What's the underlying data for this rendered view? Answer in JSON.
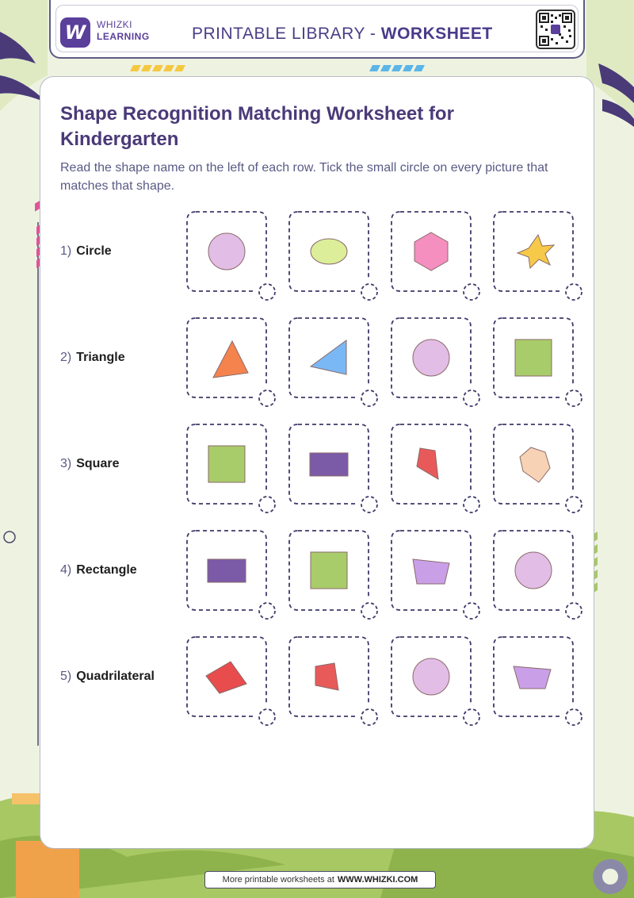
{
  "brand": {
    "logo_letter": "W",
    "line1": "WHIZKI",
    "line2": "LEARNING"
  },
  "header": {
    "title_prefix": "PRINTABLE LIBRARY - ",
    "title_bold": "WORKSHEET"
  },
  "worksheet": {
    "title": "Shape Recognition Matching Worksheet for Kindergarten",
    "instructions": "Read the shape name on the left of each row. Tick the small circle on every picture that matches that shape."
  },
  "rows": [
    {
      "number": "1)",
      "name": "Circle",
      "shapes": [
        {
          "kind": "circle",
          "color": "#e2bde6"
        },
        {
          "kind": "ellipse",
          "color": "#dcee9a"
        },
        {
          "kind": "hexagon",
          "color": "#f48fbf"
        },
        {
          "kind": "star",
          "color": "#f7c948"
        }
      ]
    },
    {
      "number": "2)",
      "name": "Triangle",
      "shapes": [
        {
          "kind": "triangle",
          "color": "#f5834e"
        },
        {
          "kind": "triangle2",
          "color": "#7ab8f5"
        },
        {
          "kind": "circle",
          "color": "#e2bde6"
        },
        {
          "kind": "square",
          "color": "#a9cc6a"
        }
      ]
    },
    {
      "number": "3)",
      "name": "Square",
      "shapes": [
        {
          "kind": "square",
          "color": "#a9cc6a"
        },
        {
          "kind": "rectangle",
          "color": "#7b5aa8"
        },
        {
          "kind": "quad",
          "color": "#e85a5a"
        },
        {
          "kind": "pentagon",
          "color": "#f7d2b4"
        }
      ]
    },
    {
      "number": "4)",
      "name": "Rectangle",
      "shapes": [
        {
          "kind": "rectangle",
          "color": "#7b5aa8"
        },
        {
          "kind": "square",
          "color": "#a9cc6a"
        },
        {
          "kind": "trapezoid",
          "color": "#c9a0e8"
        },
        {
          "kind": "circle",
          "color": "#e2bde6"
        }
      ]
    },
    {
      "number": "5)",
      "name": "Quadrilateral",
      "shapes": [
        {
          "kind": "quad2",
          "color": "#e84c4c"
        },
        {
          "kind": "quad3",
          "color": "#e85a5a"
        },
        {
          "kind": "circle",
          "color": "#e2bde6"
        },
        {
          "kind": "trapezoid2",
          "color": "#c9a0e8"
        }
      ]
    }
  ],
  "footer": {
    "text": "More printable worksheets at",
    "link": "WWW.WHIZKI.COM"
  }
}
